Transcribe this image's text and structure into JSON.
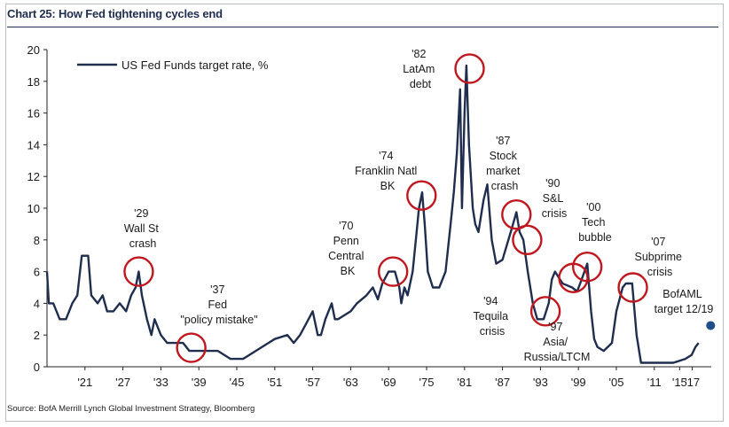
{
  "title": "Chart 25: How Fed tightening cycles end",
  "source": "Source: BofA Merrill Lynch Global Investment Strategy, Bloomberg",
  "chart_data": {
    "type": "line",
    "title": "Chart 25: How Fed tightening cycles end",
    "ylim": [
      0,
      20
    ],
    "xlim": [
      1915,
      2020
    ],
    "y_ticks": [
      "0",
      "2",
      "4",
      "6",
      "8",
      "10",
      "12",
      "14",
      "16",
      "18",
      "20"
    ],
    "x_ticks": [
      "'15",
      "'21",
      "'27",
      "'33",
      "'39",
      "'45",
      "'51",
      "'57",
      "'63",
      "'69",
      "'75",
      "'81",
      "'87",
      "'93",
      "'99",
      "'05",
      "'11",
      "'17"
    ],
    "grid": false,
    "legend_position": "top-left",
    "series": [
      {
        "name": "US Fed Funds target rate, %",
        "color": "#1f2d4e",
        "x": [
          1915,
          1915.3,
          1916,
          1917,
          1918,
          1919,
          1919.8,
          1920.5,
          1921.5,
          1922,
          1923,
          1923.8,
          1924.5,
          1925.5,
          1926.5,
          1927.5,
          1928.3,
          1929,
          1929.5,
          1930,
          1930.8,
          1931.5,
          1932,
          1933,
          1934,
          1935,
          1936.5,
          1937.5,
          1938.5,
          1939.5,
          1940.5,
          1942,
          1944,
          1946,
          1948,
          1950,
          1951,
          1953,
          1954,
          1955,
          1956,
          1957,
          1957.8,
          1958.3,
          1959,
          1960,
          1960.5,
          1961,
          1963,
          1964,
          1965.5,
          1966.5,
          1967.3,
          1968,
          1969,
          1969.5,
          1970,
          1970.7,
          1971,
          1971.5,
          1972,
          1972.8,
          1973.3,
          1973.8,
          1974.3,
          1974.7,
          1975.2,
          1976,
          1977,
          1978,
          1978.8,
          1979.3,
          1979.8,
          1980.3,
          1980.6,
          1981,
          1981.3,
          1981.7,
          1982.3,
          1982.7,
          1983.2,
          1984,
          1984.6,
          1985.3,
          1986,
          1987,
          1988.3,
          1989.2,
          1989.7,
          1990.3,
          1991,
          1991.8,
          1992.5,
          1993.5,
          1994.3,
          1994.8,
          1995.3,
          1996.5,
          1998,
          1998.8,
          1999.5,
          2000.4,
          2001,
          2001.5,
          2002,
          2003,
          2004.3,
          2005,
          2006,
          2006.5,
          2007.5,
          2008.2,
          2008.9,
          2010,
          2012,
          2014,
          2015.9,
          2016.9,
          2017.5,
          2018
        ],
        "values": [
          6,
          4,
          4,
          3,
          3,
          4,
          4.5,
          7,
          7,
          4.5,
          4,
          4.5,
          3.5,
          3.5,
          4,
          3.5,
          4.5,
          5,
          6,
          4.5,
          3,
          2,
          3,
          2,
          1.5,
          1.5,
          1.5,
          1,
          1,
          1,
          1,
          1,
          0.5,
          0.5,
          1,
          1.5,
          1.75,
          2,
          1.5,
          2,
          2.75,
          3.5,
          2,
          2,
          3,
          4,
          3,
          3,
          3.5,
          4,
          4.5,
          5,
          4.25,
          5.25,
          6,
          6,
          6,
          5,
          4,
          5,
          4.5,
          6,
          8,
          10,
          11,
          9,
          6,
          5,
          5,
          6,
          9,
          11,
          13.5,
          17.5,
          10,
          16,
          19,
          14,
          10,
          9,
          8.5,
          10.5,
          11.5,
          8,
          6.5,
          6.75,
          8.5,
          9.75,
          8.5,
          8,
          6,
          4,
          3,
          3,
          4,
          5.5,
          6,
          5.25,
          5,
          4.75,
          5.5,
          6.5,
          3.5,
          1.75,
          1.25,
          1,
          1.5,
          3.5,
          5,
          5.25,
          5.25,
          2,
          0.25,
          0.25,
          0.25,
          0.25,
          0.5,
          0.75,
          1.25,
          1.5
        ],
        "projection": {
          "name": "BofAML target 12/19",
          "x": 2019.9,
          "value": 2.6
        }
      }
    ],
    "annotations": [
      {
        "text": "'29 Wall St crash",
        "x": 1929.5,
        "y": 6
      },
      {
        "text": "'37 Fed \"policy mistake\"",
        "x": 1937.8,
        "y": 1.2
      },
      {
        "text": "'70 Penn Central BK",
        "x": 1969.7,
        "y": 6
      },
      {
        "text": "'74 Franklin Natl BK",
        "x": 1974.2,
        "y": 10.8
      },
      {
        "text": "'82 LatAm debt",
        "x": 1981.8,
        "y": 18.8
      },
      {
        "text": "'87 Stock market crash",
        "x": 1989.2,
        "y": 9.6
      },
      {
        "text": "'90 S&L crisis",
        "x": 1990.9,
        "y": 8
      },
      {
        "text": "'94 Tequila crisis",
        "x": 1993.8,
        "y": 3.5
      },
      {
        "text": "'97 Asia/ Russia/LTCM",
        "x": 1998.2,
        "y": 5.6
      },
      {
        "text": "'00 Tech bubble",
        "x": 2000.4,
        "y": 6.3
      },
      {
        "text": "'07 Subprime crisis",
        "x": 2007.6,
        "y": 5
      }
    ]
  },
  "labels": {
    "crash29": [
      "'29",
      "Wall St",
      "crash"
    ],
    "fed37": [
      "'37",
      "Fed",
      "\"policy mistake\""
    ],
    "penn70": [
      "'70",
      "Penn",
      "Central",
      "BK"
    ],
    "franklin74": [
      "'74",
      "Franklin Natl",
      "BK"
    ],
    "latam82": [
      "'82",
      "LatAm",
      "debt"
    ],
    "stock87": [
      "'87",
      "Stock",
      "market",
      "crash"
    ],
    "sl90": [
      "'90",
      "S&L",
      "crisis"
    ],
    "tequila94": [
      "'94",
      "Tequila",
      "crisis"
    ],
    "asia97": [
      "'97",
      "Asia/",
      "Russia/LTCM"
    ],
    "tech00": [
      "'00",
      "Tech",
      "bubble"
    ],
    "subprime07": [
      "'07",
      "Subprime",
      "crisis"
    ],
    "bofaml": [
      "BofAML",
      "target 12/19"
    ]
  }
}
